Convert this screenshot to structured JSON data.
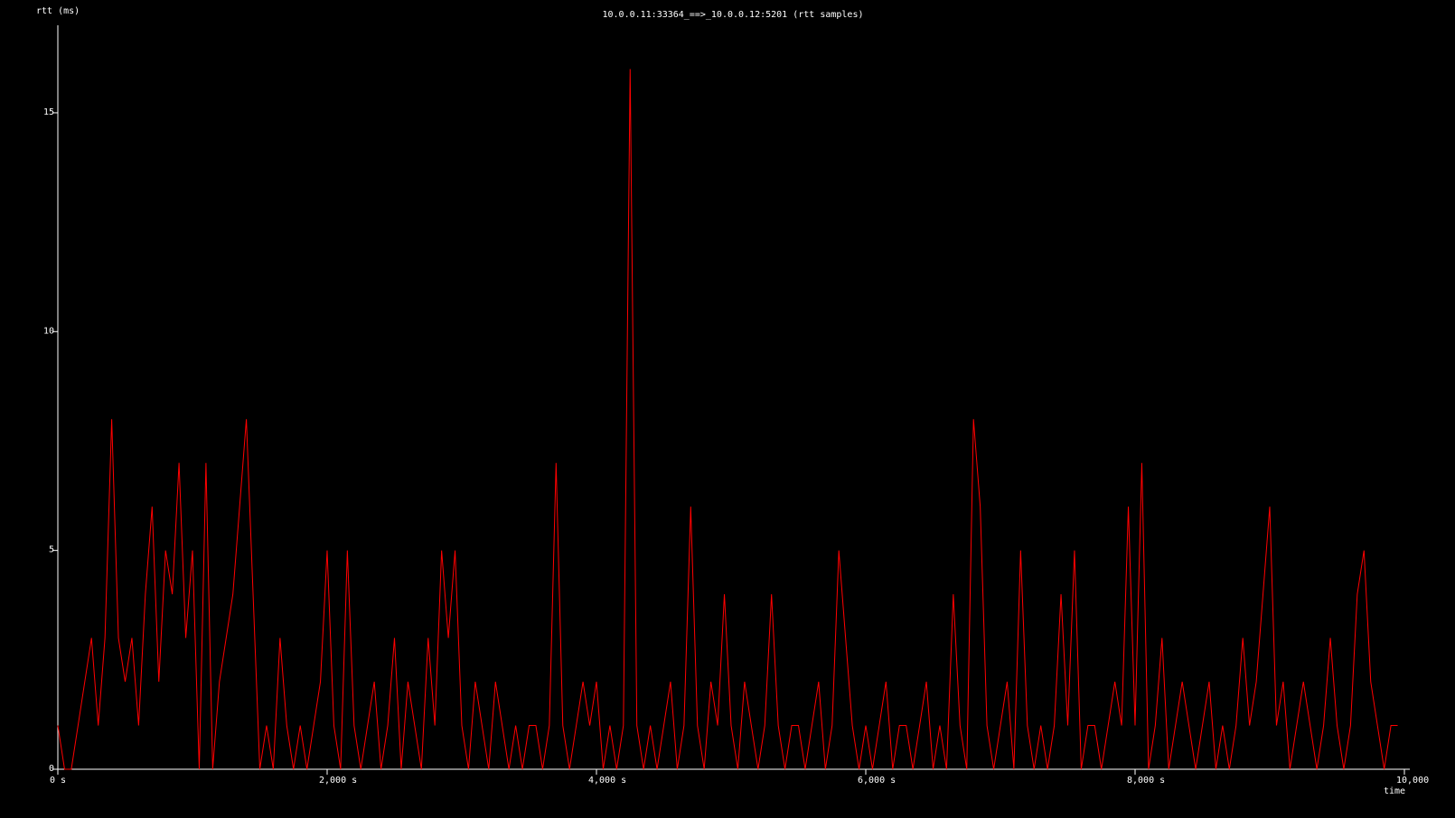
{
  "chart_data": {
    "type": "line",
    "title": "10.0.0.11:33364_==>_10.0.0.12:5201 (rtt samples)",
    "y_label": "rtt (ms)",
    "x_label": "time",
    "color": "#ff0000",
    "x": [
      0,
      50,
      100,
      150,
      200,
      250,
      300,
      350,
      400,
      450,
      500,
      550,
      600,
      650,
      700,
      750,
      800,
      850,
      900,
      950,
      1000,
      1050,
      1100,
      1150,
      1200,
      1250,
      1300,
      1350,
      1400,
      1450,
      1500,
      1550,
      1600,
      1650,
      1700,
      1750,
      1800,
      1850,
      1900,
      1950,
      2000,
      2050,
      2100,
      2150,
      2200,
      2250,
      2300,
      2350,
      2400,
      2450,
      2500,
      2550,
      2600,
      2650,
      2700,
      2750,
      2800,
      2850,
      2900,
      2950,
      3000,
      3050,
      3100,
      3150,
      3200,
      3250,
      3300,
      3350,
      3400,
      3450,
      3500,
      3550,
      3600,
      3650,
      3700,
      3750,
      3800,
      3850,
      3900,
      3950,
      4000,
      4050,
      4100,
      4150,
      4200,
      4250,
      4300,
      4350,
      4400,
      4450,
      4500,
      4550,
      4600,
      4650,
      4700,
      4750,
      4800,
      4850,
      4900,
      4950,
      5000,
      5050,
      5100,
      5150,
      5200,
      5250,
      5300,
      5350,
      5400,
      5450,
      5500,
      5550,
      5600,
      5650,
      5700,
      5750,
      5800,
      5850,
      5900,
      5950,
      6000,
      6050,
      6100,
      6150,
      6200,
      6250,
      6300,
      6350,
      6400,
      6450,
      6500,
      6550,
      6600,
      6650,
      6700,
      6750,
      6800,
      6850,
      6900,
      6950,
      7000,
      7050,
      7100,
      7150,
      7200,
      7250,
      7300,
      7350,
      7400,
      7450,
      7500,
      7550,
      7600,
      7650,
      7700,
      7750,
      7800,
      7850,
      7900,
      7950,
      8000,
      8050,
      8100,
      8150,
      8200,
      8250,
      8300,
      8350,
      8400,
      8450,
      8500,
      8550,
      8600,
      8650,
      8700,
      8750,
      8800,
      8850,
      8900,
      8950,
      9000,
      9050,
      9100,
      9150,
      9200,
      9250,
      9300,
      9350,
      9400,
      9450,
      9500,
      9550,
      9600,
      9650,
      9700,
      9750,
      9800,
      9850,
      9900,
      9950
    ],
    "values": [
      1,
      0,
      0,
      1,
      2,
      3,
      1,
      3,
      8,
      3,
      2,
      3,
      1,
      4,
      6,
      2,
      5,
      4,
      7,
      3,
      5,
      0,
      7,
      0,
      2,
      3,
      4,
      6,
      8,
      4,
      0,
      1,
      0,
      3,
      1,
      0,
      1,
      0,
      1,
      2,
      5,
      1,
      0,
      5,
      1,
      0,
      1,
      2,
      0,
      1,
      3,
      0,
      2,
      1,
      0,
      3,
      1,
      5,
      3,
      5,
      1,
      0,
      2,
      1,
      0,
      2,
      1,
      0,
      1,
      0,
      1,
      1,
      0,
      1,
      7,
      1,
      0,
      1,
      2,
      1,
      2,
      0,
      1,
      0,
      1,
      16,
      1,
      0,
      1,
      0,
      1,
      2,
      0,
      1,
      6,
      1,
      0,
      2,
      1,
      4,
      1,
      0,
      2,
      1,
      0,
      1,
      4,
      1,
      0,
      1,
      1,
      0,
      1,
      2,
      0,
      1,
      5,
      3,
      1,
      0,
      1,
      0,
      1,
      2,
      0,
      1,
      1,
      0,
      1,
      2,
      0,
      1,
      0,
      4,
      1,
      0,
      8,
      6,
      1,
      0,
      1,
      2,
      0,
      5,
      1,
      0,
      1,
      0,
      1,
      4,
      1,
      5,
      0,
      1,
      1,
      0,
      1,
      2,
      1,
      6,
      1,
      7,
      0,
      1,
      3,
      0,
      1,
      2,
      1,
      0,
      1,
      2,
      0,
      1,
      0,
      1,
      3,
      1,
      2,
      4,
      6,
      1,
      2,
      0,
      1,
      2,
      1,
      0,
      1,
      3,
      1,
      0,
      1,
      4,
      5,
      2,
      1,
      0,
      1,
      1
    ],
    "xlim": [
      0,
      10000
    ],
    "ylim": [
      0,
      17
    ],
    "xticks": [
      {
        "value": 0,
        "label": "0 s"
      },
      {
        "value": 2000,
        "label": "2,000  s"
      },
      {
        "value": 4000,
        "label": "4,000  s"
      },
      {
        "value": 6000,
        "label": "6,000  s"
      },
      {
        "value": 8000,
        "label": "8,000  s"
      },
      {
        "value": 10000,
        "label": "10,000"
      }
    ],
    "yticks": [
      0,
      5,
      10,
      15
    ]
  }
}
